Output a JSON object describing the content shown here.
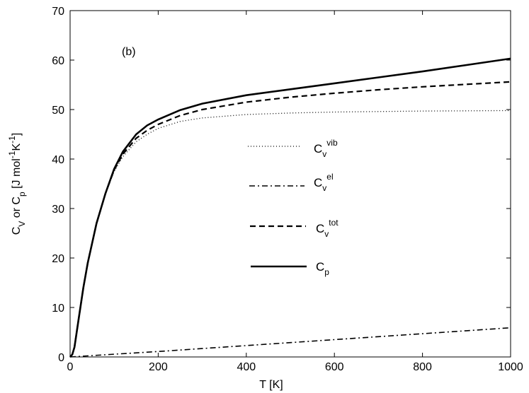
{
  "chart_data": {
    "type": "line",
    "panel_label": "(b)",
    "xlabel": "T [K]",
    "ylabel": {
      "parts": [
        {
          "t": "C"
        },
        {
          "t": "V",
          "sub": true
        },
        {
          "t": " or C"
        },
        {
          "t": "p",
          "sub": true
        },
        {
          "t": " [J mol"
        },
        {
          "t": "-1",
          "sup": true
        },
        {
          "t": "K"
        },
        {
          "t": "-1",
          "sup": true
        },
        {
          "t": "]"
        }
      ]
    },
    "xlim": [
      0,
      1000
    ],
    "ylim": [
      0,
      70
    ],
    "xticks": [
      0,
      200,
      400,
      600,
      800,
      1000
    ],
    "yticks": [
      0,
      10,
      20,
      30,
      40,
      50,
      60,
      70
    ],
    "grid": false,
    "series": [
      {
        "key": "vib",
        "style": "dotted",
        "legend_main": "C",
        "legend_sub": "v",
        "legend_sup": "vib",
        "x": [
          0,
          5,
          10,
          20,
          30,
          40,
          50,
          60,
          80,
          100,
          120,
          150,
          175,
          200,
          250,
          300,
          400,
          500,
          600,
          700,
          800,
          900,
          1000
        ],
        "y": [
          0,
          0.5,
          2,
          8,
          14,
          19,
          23,
          27,
          33,
          37.5,
          40.5,
          43.5,
          45,
          46.2,
          47.6,
          48.3,
          49,
          49.3,
          49.5,
          49.6,
          49.7,
          49.75,
          49.8
        ]
      },
      {
        "key": "el",
        "style": "dashdot",
        "legend_main": "C",
        "legend_sub": "v",
        "legend_sup": "el",
        "x": [
          0,
          100,
          200,
          300,
          400,
          500,
          600,
          700,
          800,
          900,
          1000
        ],
        "y": [
          0,
          0.55,
          1.1,
          1.7,
          2.3,
          2.9,
          3.5,
          4.1,
          4.7,
          5.3,
          5.9
        ]
      },
      {
        "key": "tot",
        "style": "dashed",
        "legend_main": "C",
        "legend_sub": "v",
        "legend_sup": "tot",
        "x": [
          0,
          5,
          10,
          20,
          30,
          40,
          50,
          60,
          80,
          100,
          120,
          150,
          175,
          200,
          250,
          300,
          400,
          500,
          600,
          700,
          800,
          900,
          1000
        ],
        "y": [
          0,
          0.5,
          2,
          8,
          14,
          19,
          23,
          27,
          33,
          37.8,
          41,
          44.2,
          45.8,
          47,
          48.8,
          50,
          51.5,
          52.5,
          53.3,
          54,
          54.6,
          55.1,
          55.6
        ]
      },
      {
        "key": "cp",
        "style": "solid",
        "legend_main": "C",
        "legend_sub": "p",
        "legend_sup": "",
        "x": [
          0,
          5,
          10,
          20,
          30,
          40,
          50,
          60,
          80,
          100,
          120,
          150,
          175,
          200,
          250,
          300,
          400,
          500,
          600,
          700,
          800,
          900,
          1000
        ],
        "y": [
          0,
          0.5,
          2,
          8,
          14,
          19,
          23,
          27,
          33,
          38,
          41.5,
          45,
          46.8,
          48,
          49.9,
          51.2,
          52.9,
          54.1,
          55.3,
          56.5,
          57.7,
          59,
          60.3
        ]
      }
    ]
  }
}
